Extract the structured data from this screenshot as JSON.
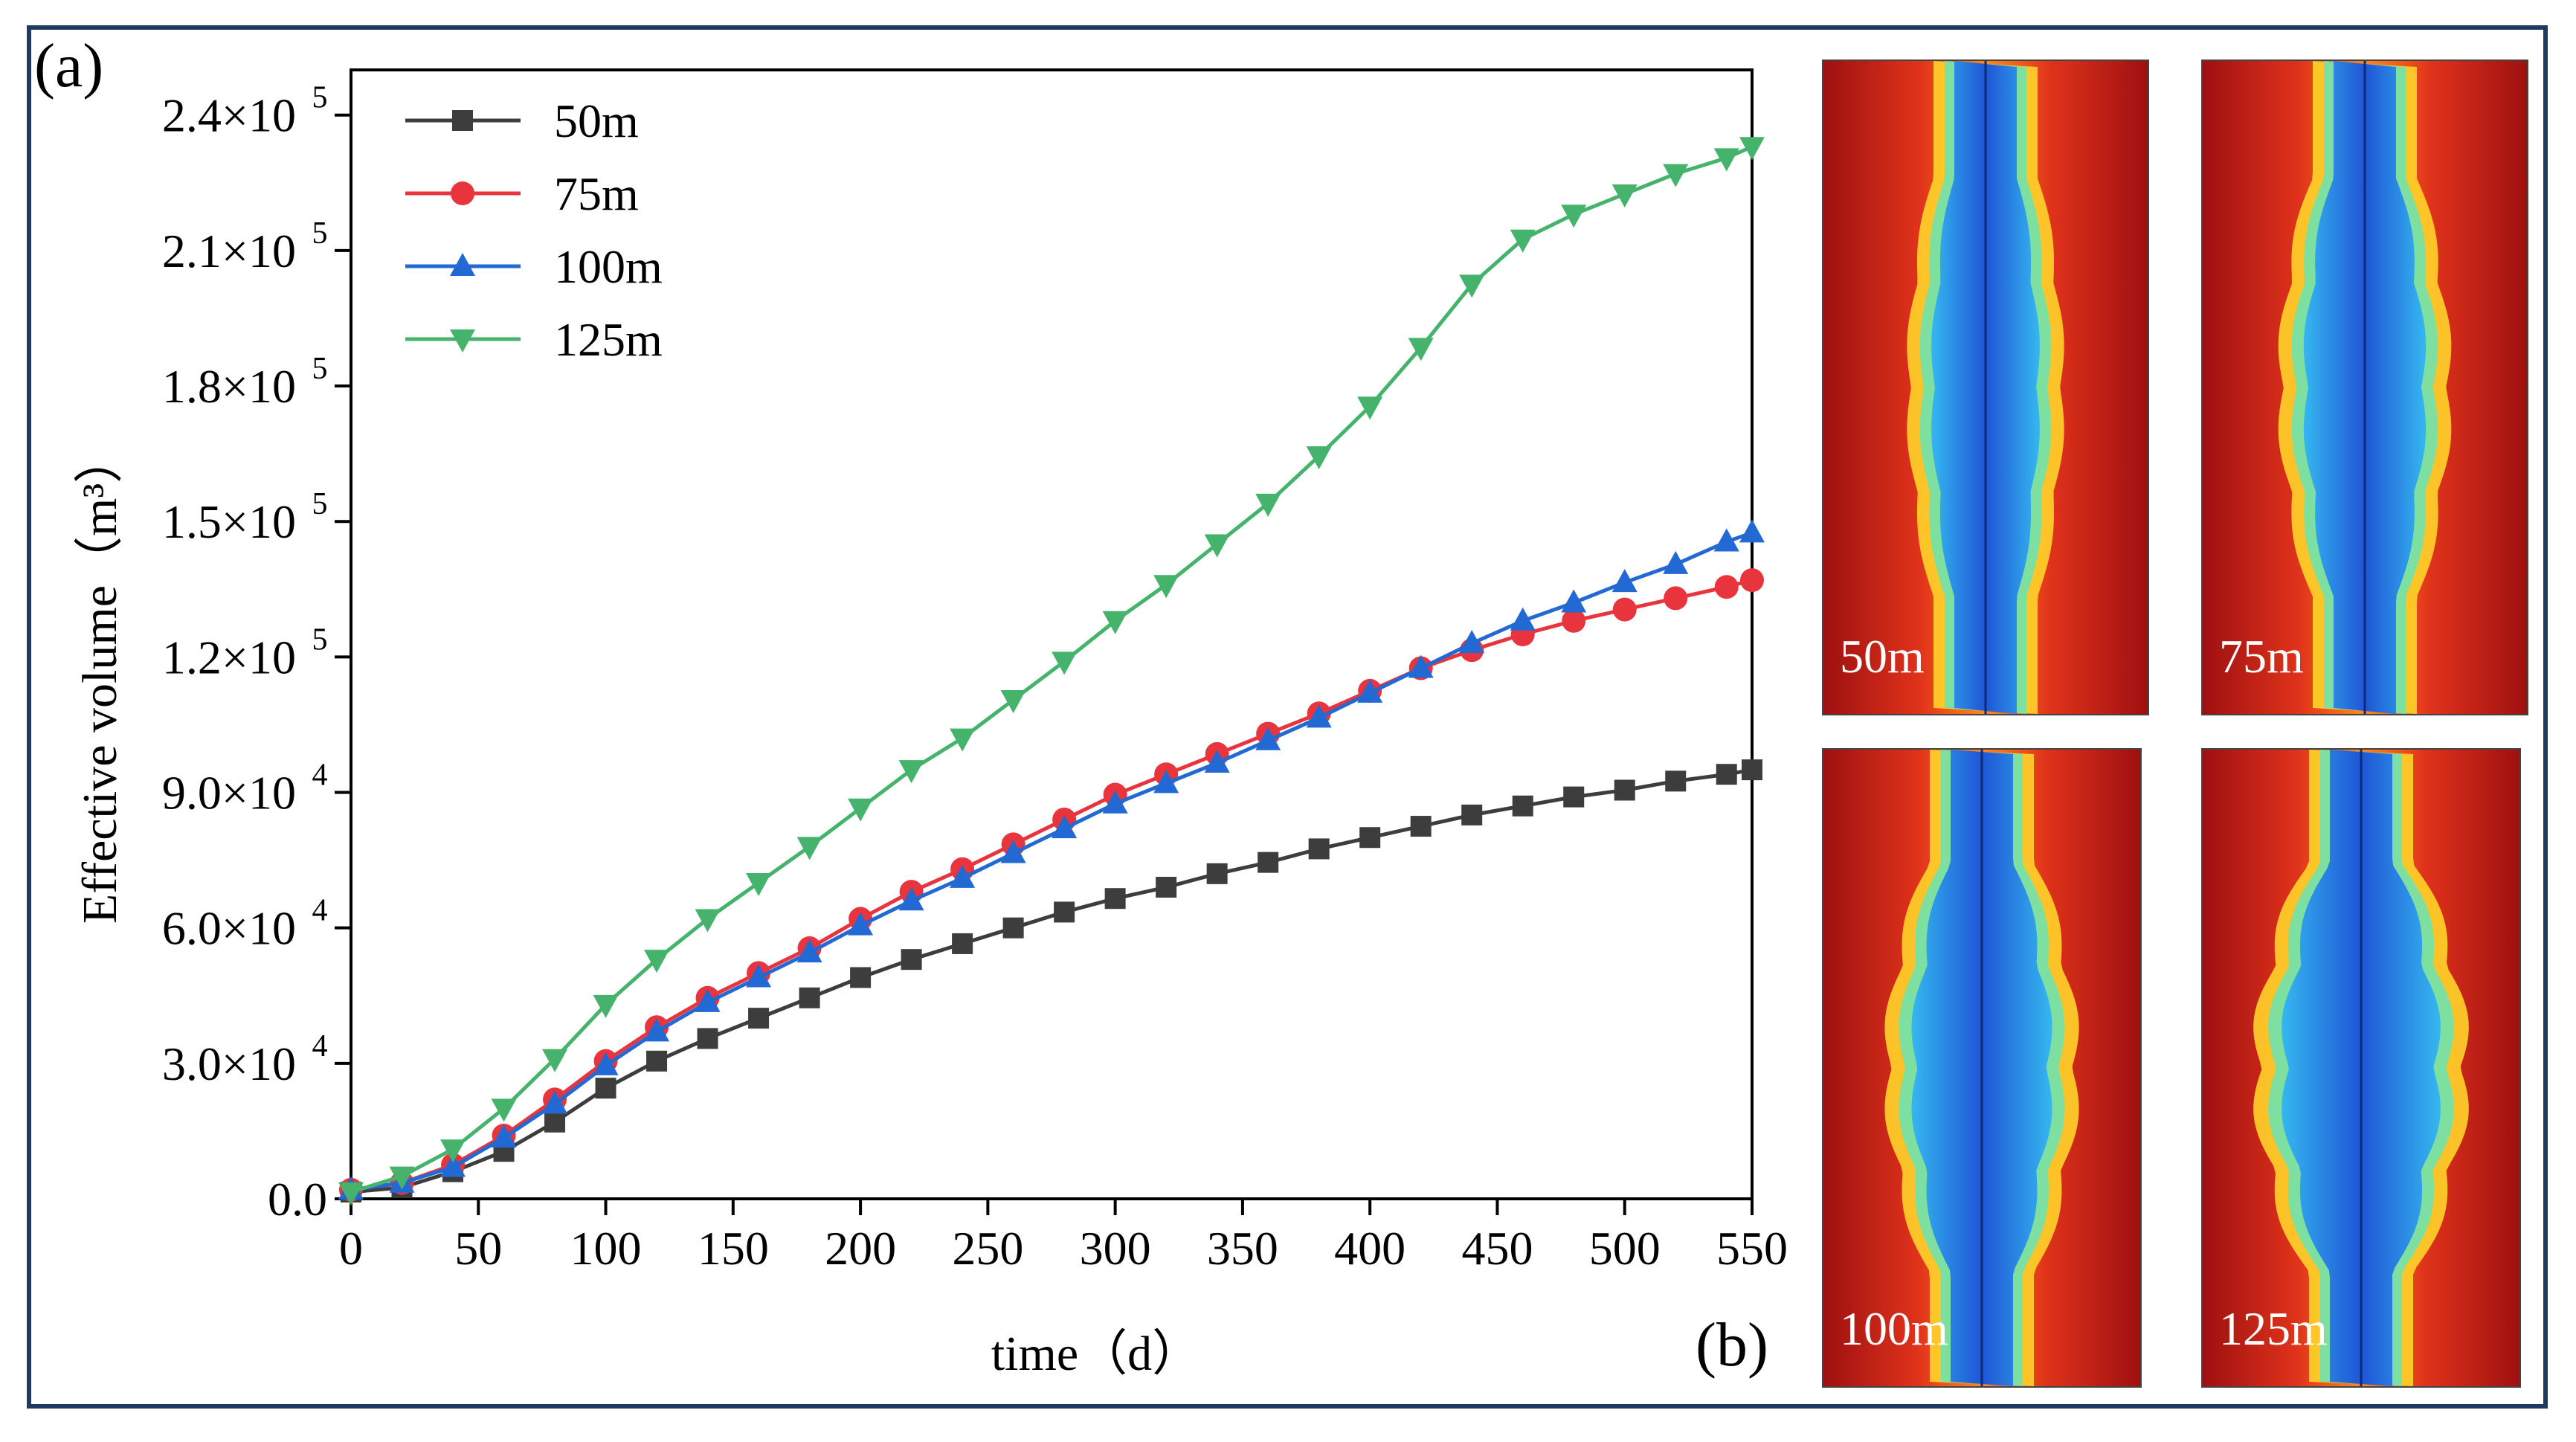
{
  "panel_a_label": "(a)",
  "panel_b_label": "(b)",
  "chart_data": {
    "type": "line",
    "xlabel": "time（d）",
    "ylabel": "Effective volume（m³）",
    "xlim": [
      0,
      550
    ],
    "ylim": [
      0,
      250000
    ],
    "xticks": [
      0,
      50,
      100,
      150,
      200,
      250,
      300,
      350,
      400,
      450,
      500,
      550
    ],
    "yticks": [
      {
        "value": 0,
        "mantissa": "0.0",
        "exp": ""
      },
      {
        "value": 30000,
        "mantissa": "3.0×10",
        "exp": "4"
      },
      {
        "value": 60000,
        "mantissa": "6.0×10",
        "exp": "4"
      },
      {
        "value": 90000,
        "mantissa": "9.0×10",
        "exp": "4"
      },
      {
        "value": 120000,
        "mantissa": "1.2×10",
        "exp": "5"
      },
      {
        "value": 150000,
        "mantissa": "1.5×10",
        "exp": "5"
      },
      {
        "value": 180000,
        "mantissa": "1.8×10",
        "exp": "5"
      },
      {
        "value": 210000,
        "mantissa": "2.1×10",
        "exp": "5"
      },
      {
        "value": 240000,
        "mantissa": "2.4×10",
        "exp": "5"
      }
    ],
    "legend_position": "top-left",
    "grid": false,
    "x": [
      0,
      20,
      40,
      60,
      80,
      100,
      120,
      140,
      160,
      180,
      200,
      220,
      240,
      260,
      280,
      300,
      320,
      340,
      360,
      380,
      400,
      420,
      440,
      460,
      480,
      500,
      520,
      540,
      550
    ],
    "series": [
      {
        "name": "50m",
        "color": "#3d3d3d",
        "marker": "square",
        "values": [
          1500,
          2500,
          6000,
          10500,
          17000,
          24500,
          30500,
          35500,
          40000,
          44500,
          49000,
          53000,
          56500,
          60000,
          63500,
          66500,
          69000,
          72000,
          74500,
          77500,
          80000,
          82500,
          85000,
          87000,
          89000,
          90500,
          92500,
          94000,
          95000
        ]
      },
      {
        "name": "75m",
        "color": "#e8343c",
        "marker": "circle",
        "values": [
          2000,
          3500,
          7500,
          14000,
          22000,
          30500,
          38000,
          44500,
          50000,
          55500,
          62000,
          68000,
          73000,
          78500,
          84000,
          89500,
          94000,
          98500,
          103000,
          107500,
          112500,
          117500,
          121500,
          125000,
          128000,
          130500,
          133000,
          135500,
          137000
        ]
      },
      {
        "name": "100m",
        "color": "#2369d4",
        "marker": "triangle-up",
        "values": [
          2000,
          3500,
          7000,
          13500,
          21000,
          29500,
          37000,
          43500,
          49000,
          54500,
          60500,
          66000,
          71000,
          76500,
          82000,
          87500,
          92000,
          96500,
          101500,
          106500,
          112000,
          117500,
          123000,
          128000,
          132000,
          136500,
          140500,
          145500,
          147500
        ]
      },
      {
        "name": "125m",
        "color": "#45b36b",
        "marker": "triangle-down",
        "values": [
          1500,
          5000,
          11000,
          20000,
          31000,
          43000,
          53000,
          62000,
          70000,
          78000,
          86500,
          95000,
          102000,
          110500,
          119000,
          128000,
          136000,
          145000,
          154000,
          164500,
          175500,
          188500,
          202500,
          212500,
          218000,
          222500,
          227000,
          230500,
          233000
        ]
      }
    ]
  },
  "maps": [
    {
      "label": "50m"
    },
    {
      "label": "75m"
    },
    {
      "label": "100m"
    },
    {
      "label": "125m"
    }
  ],
  "colors": {
    "frame": "#1f3a5f",
    "map_deep_red": "#b31515",
    "map_blue": "#2d7fe6"
  }
}
